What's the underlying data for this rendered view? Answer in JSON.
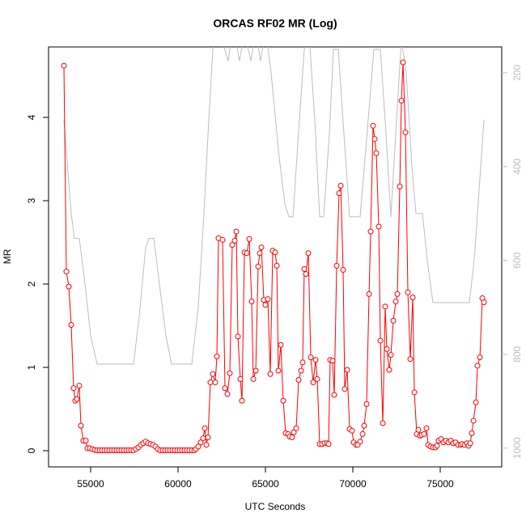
{
  "chart_data": {
    "type": "line",
    "title": "ORCAS RF02 MR (Log)",
    "x_label": "UTC Seconds",
    "y_label": "MR",
    "xlim": [
      52593,
      78518
    ],
    "xticks": [
      55000,
      60000,
      65000,
      70000,
      75000
    ],
    "ylim": [
      -0.194,
      4.845
    ],
    "yticks": [
      0,
      1,
      2,
      3,
      4
    ],
    "y2lim": [
      1040,
      145
    ],
    "y2ticks": [
      200,
      400,
      600,
      800,
      1000
    ],
    "y2_color": "#bebebe",
    "series": [
      {
        "color": "#ff0000",
        "marker": "circle",
        "x": [
          53472,
          53611,
          53750,
          53888,
          54027,
          54120,
          54213,
          54351,
          54444,
          54583,
          54722,
          54814,
          54953,
          55092,
          55231,
          55370,
          55509,
          55648,
          55787,
          55926,
          56064,
          56203,
          56342,
          56481,
          56620,
          56759,
          56898,
          57037,
          57176,
          57315,
          57454,
          57592,
          57731,
          57870,
          58009,
          58148,
          58287,
          58426,
          58565,
          58704,
          58843,
          58981,
          59120,
          59259,
          59398,
          59537,
          59676,
          59815,
          59954,
          60093,
          60232,
          60370,
          60509,
          60648,
          60787,
          60926,
          61019,
          61158,
          61297,
          61435,
          61528,
          61621,
          61713,
          61852,
          61991,
          62130,
          62222,
          62315,
          62547,
          62685,
          62824,
          62963,
          63102,
          63241,
          63334,
          63426,
          63565,
          63658,
          63797,
          63936,
          64074,
          64213,
          64306,
          64445,
          64584,
          64676,
          64769,
          64908,
          65000,
          65139,
          65278,
          65417,
          65556,
          65649,
          65741,
          65880,
          66019,
          66158,
          66297,
          66389,
          66528,
          66621,
          66760,
          66899,
          67038,
          67130,
          67223,
          67315,
          67454,
          67593,
          67732,
          67871,
          67964,
          68103,
          68241,
          68380,
          68519,
          68612,
          68704,
          68843,
          68936,
          69075,
          69214,
          69306,
          69445,
          69538,
          69677,
          69816,
          69955,
          70047,
          70186,
          70279,
          70418,
          70557,
          70649,
          70788,
          70927,
          71020,
          71158,
          71251,
          71344,
          71482,
          71575,
          71714,
          71853,
          71945,
          72084,
          72177,
          72316,
          72455,
          72547,
          72686,
          72779,
          72871,
          73010,
          73149,
          73288,
          73427,
          73520,
          73658,
          73751,
          73844,
          73936,
          74075,
          74214,
          74307,
          74446,
          74584,
          74723,
          74816,
          74909,
          75048,
          75186,
          75325,
          75465,
          75604,
          75742,
          75881,
          76020,
          76159,
          76252,
          76390,
          76529,
          76622,
          76715,
          76807,
          76900,
          77039,
          77132,
          77270,
          77409,
          77502
        ],
        "values": [
          4.62,
          2.15,
          1.97,
          1.51,
          0.75,
          0.6,
          0.62,
          0.78,
          0.3,
          0.12,
          0.12,
          0.03,
          0.03,
          0.02,
          0.01,
          0.005,
          0.005,
          0.005,
          0.005,
          0.005,
          0.005,
          0.005,
          0.005,
          0.005,
          0.005,
          0.005,
          0.005,
          0.005,
          0.005,
          0.005,
          0.005,
          0.02,
          0.04,
          0.07,
          0.09,
          0.11,
          0.09,
          0.08,
          0.07,
          0.05,
          0.02,
          0.005,
          0.005,
          0.005,
          0.005,
          0.005,
          0.005,
          0.005,
          0.005,
          0.005,
          0.005,
          0.005,
          0.005,
          0.005,
          0.005,
          0.005,
          0.02,
          0.05,
          0.1,
          0.15,
          0.27,
          0.07,
          0.16,
          0.82,
          0.92,
          0.82,
          1.13,
          2.55,
          2.53,
          0.75,
          0.68,
          0.93,
          2.47,
          2.52,
          2.63,
          1.37,
          0.86,
          0.6,
          2.38,
          2.37,
          2.54,
          1.79,
          0.86,
          0.96,
          2.21,
          2.37,
          2.44,
          1.81,
          1.75,
          1.82,
          0.92,
          2.4,
          2.38,
          2.22,
          0.96,
          1.27,
          0.6,
          0.21,
          0.2,
          0.17,
          0.16,
          0.22,
          0.27,
          0.85,
          0.96,
          1.06,
          2.18,
          2.12,
          2.37,
          1.12,
          0.82,
          1.09,
          0.86,
          0.08,
          0.08,
          0.09,
          0.09,
          0.08,
          1.09,
          1.08,
          0.67,
          2.22,
          3.09,
          3.18,
          2.17,
          0.74,
          0.97,
          0.26,
          0.24,
          0.1,
          0.07,
          0.07,
          0.11,
          0.2,
          0.3,
          0.56,
          1.88,
          2.63,
          3.9,
          3.74,
          3.57,
          2.69,
          1.32,
          0.33,
          1.73,
          1.22,
          0.97,
          1.15,
          1.56,
          1.79,
          1.88,
          3.17,
          4.2,
          4.66,
          3.82,
          1.9,
          1.1,
          1.84,
          0.7,
          0.2,
          0.25,
          0.18,
          0.19,
          0.2,
          0.27,
          0.07,
          0.05,
          0.04,
          0.04,
          0.06,
          0.12,
          0.14,
          0.1,
          0.12,
          0.1,
          0.12,
          0.09,
          0.1,
          0.07,
          0.07,
          0.08,
          0.07,
          0.09,
          0.06,
          0.09,
          0.21,
          0.36,
          0.58,
          1.02,
          1.12,
          1.83,
          1.78
        ]
      },
      {
        "color": "#bebebe",
        "axis": "y2",
        "x": [
          53472,
          53888,
          54073,
          54351,
          54675,
          55000,
          55370,
          57454,
          57777,
          58148,
          58333,
          58611,
          58935,
          59305,
          59630,
          60787,
          61158,
          61482,
          61760,
          61991,
          62222,
          62593,
          62870,
          63149,
          63519,
          63797,
          64167,
          64445,
          64722,
          65000,
          65324,
          65787,
          66111,
          66343,
          66575,
          66945,
          67223,
          67500,
          67824,
          68103,
          68334,
          68658,
          68890,
          69167,
          69491,
          69816,
          70418,
          70881,
          71205,
          71575,
          71899,
          72177,
          72501,
          72779,
          73056,
          73380,
          73612,
          73983,
          74261,
          74584,
          76668,
          76946,
          77224,
          77502
        ],
        "values": [
          300,
          500,
          553,
          553,
          650,
          760,
          821,
          821,
          720,
          573,
          553,
          553,
          650,
          760,
          821,
          821,
          700,
          500,
          300,
          150,
          100,
          140,
          175,
          100,
          175,
          110,
          175,
          110,
          175,
          110,
          200,
          380,
          480,
          507,
          507,
          300,
          150,
          120,
          300,
          507,
          507,
          330,
          150,
          150,
          330,
          507,
          507,
          300,
          150,
          150,
          330,
          507,
          300,
          130,
          200,
          400,
          500,
          500,
          600,
          690,
          690,
          600,
          450,
          300
        ]
      }
    ]
  }
}
